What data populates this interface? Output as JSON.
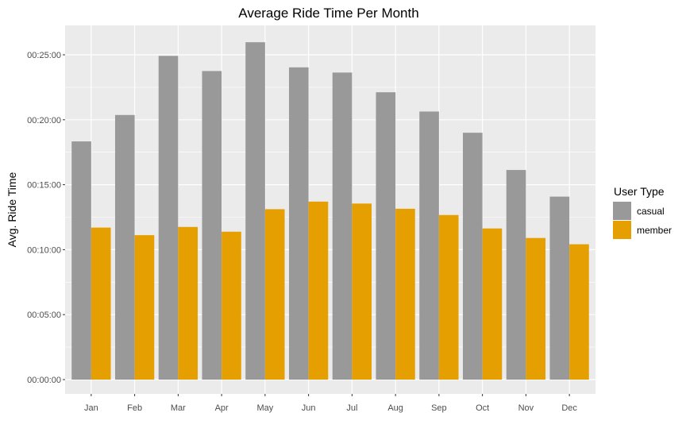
{
  "chart_data": {
    "type": "bar",
    "title": "Average Ride Time Per Month",
    "xlabel": "",
    "ylabel": "Avg. Ride Time",
    "categories": [
      "Jan",
      "Feb",
      "Mar",
      "Apr",
      "May",
      "Jun",
      "Jul",
      "Aug",
      "Sep",
      "Oct",
      "Nov",
      "Dec"
    ],
    "y_unit": "seconds",
    "ylim": [
      0,
      1620
    ],
    "y_ticks": [
      {
        "value": 0,
        "label": "00:00:00"
      },
      {
        "value": 300,
        "label": "00:05:00"
      },
      {
        "value": 600,
        "label": "00:10:00"
      },
      {
        "value": 900,
        "label": "00:15:00"
      },
      {
        "value": 1200,
        "label": "00:20:00"
      },
      {
        "value": 1500,
        "label": "00:25:00"
      }
    ],
    "series": [
      {
        "name": "casual",
        "color": "#999999",
        "values": [
          1100,
          1222,
          1495,
          1425,
          1558,
          1442,
          1418,
          1327,
          1238,
          1140,
          968,
          845
        ]
      },
      {
        "name": "member",
        "color": "#E69F00",
        "values": [
          702,
          667,
          705,
          683,
          787,
          822,
          813,
          789,
          760,
          698,
          654,
          625
        ]
      }
    ],
    "legend_title": "User Type",
    "legend_position": "right",
    "grid": true,
    "panel_background": "#EBEBEB",
    "grid_color": "#FFFFFF"
  }
}
